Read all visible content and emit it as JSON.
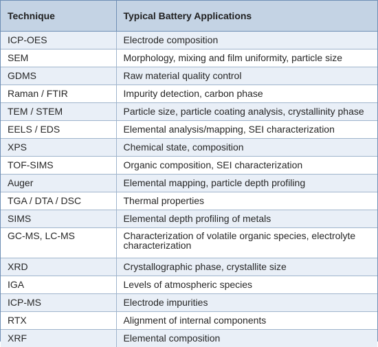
{
  "table": {
    "headers": [
      "Technique",
      "Typical Battery Applications"
    ],
    "rows": [
      [
        "ICP-OES",
        "Electrode composition"
      ],
      [
        "SEM",
        "Morphology, mixing and film uniformity, particle size"
      ],
      [
        "GDMS",
        "Raw material quality control"
      ],
      [
        "Raman / FTIR",
        "Impurity detection, carbon phase"
      ],
      [
        "TEM / STEM",
        "Particle size, particle coating analysis, crystallinity phase"
      ],
      [
        "EELS / EDS",
        "Elemental analysis/mapping, SEI characterization"
      ],
      [
        "XPS",
        "Chemical state, composition"
      ],
      [
        "TOF-SIMS",
        "Organic composition, SEI characterization"
      ],
      [
        "Auger",
        "Elemental mapping, particle depth profiling"
      ],
      [
        "TGA / DTA / DSC",
        "Thermal properties"
      ],
      [
        "SIMS",
        "Elemental depth profiling of metals"
      ],
      [
        "GC-MS, LC-MS",
        "Characterization of volatile organic species, electrolyte characterization"
      ],
      [
        "XRD",
        "Crystallographic phase, crystallite size"
      ],
      [
        "IGA",
        "Levels of atmospheric species"
      ],
      [
        "ICP-MS",
        "Electrode impurities"
      ],
      [
        "RTX",
        "Alignment of internal components"
      ],
      [
        "XRF",
        "Elemental composition"
      ]
    ]
  },
  "colors": {
    "header_bg": "#c4d3e4",
    "alt_row_bg": "#e9eff7",
    "border": "#6f8fb5"
  }
}
